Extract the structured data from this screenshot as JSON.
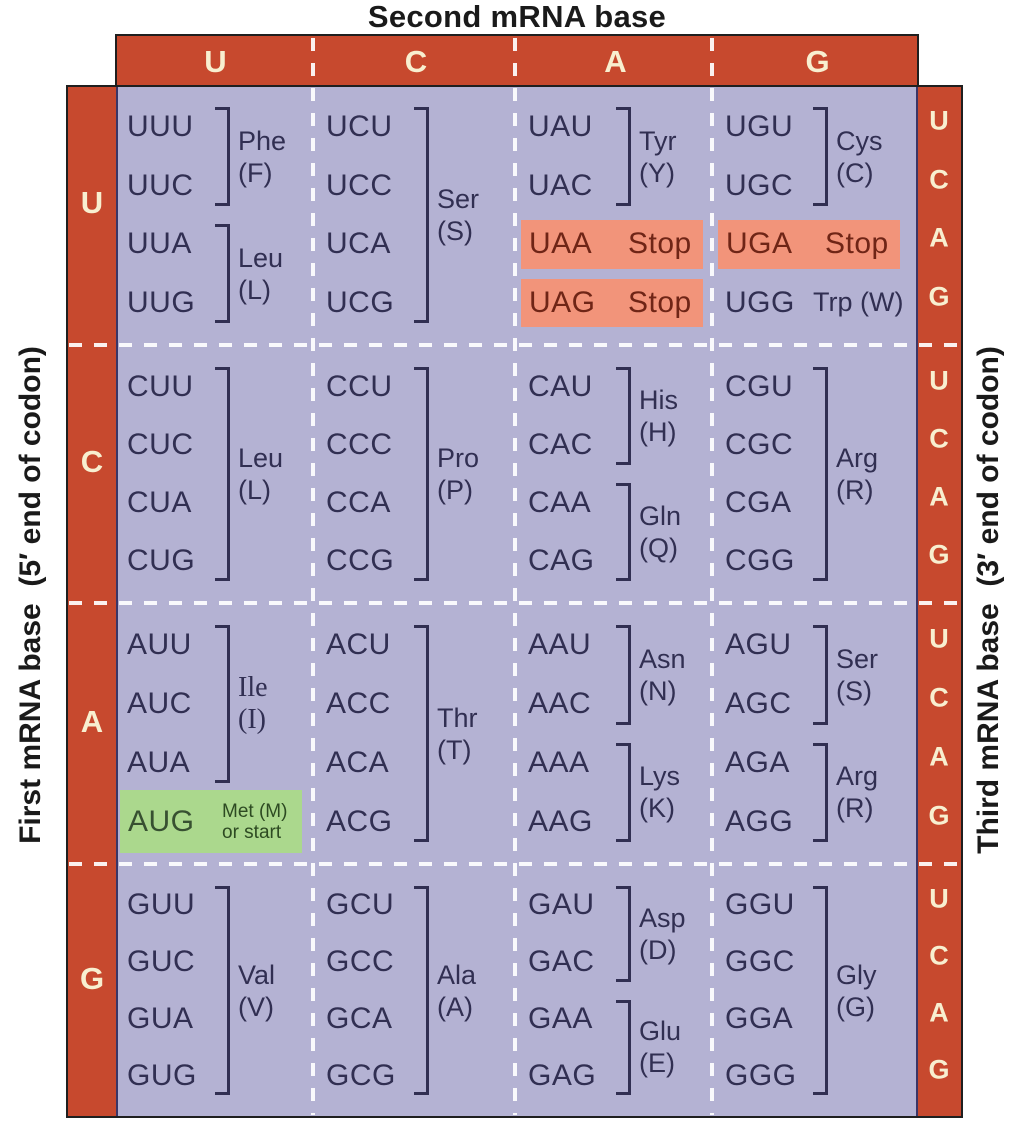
{
  "title": "Second mRNA base",
  "axis_labels": {
    "left": "First mRNA base  (5′ end of codon)",
    "right": "Third mRNA base  (3′ end of codon)"
  },
  "second_base_headers": [
    "U",
    "C",
    "A",
    "G"
  ],
  "first_base_labels": [
    "U",
    "C",
    "A",
    "G"
  ],
  "third_base_labels": [
    "U",
    "C",
    "A",
    "G"
  ],
  "colors": {
    "band_red": "#C7492E",
    "body_purple": "#B4B2D3",
    "stop_highlight": "#F2947A",
    "start_highlight": "#ABD88D",
    "codon_text": "#312F52",
    "stop_text": "#6F2516",
    "start_codon_text": "#375031",
    "start_label_text": "#2D4A22",
    "band_letter_cream": "#F8EFD0",
    "title_text": "#1A1A1A",
    "border_black": "#1F1F1F",
    "dash_white": "#FFFFFF"
  },
  "grid": {
    "rows": [
      {
        "first_base": "U",
        "cells": [
          {
            "second_base": "U",
            "groups": [
              {
                "type": "bracket",
                "codons": [
                  "UUU",
                  "UUC"
                ],
                "label": [
                  "Phe",
                  "(F)"
                ]
              },
              {
                "type": "bracket",
                "codons": [
                  "UUA",
                  "UUG"
                ],
                "label": [
                  "Leu",
                  "(L)"
                ]
              }
            ]
          },
          {
            "second_base": "C",
            "groups": [
              {
                "type": "bracket",
                "codons": [
                  "UCU",
                  "UCC",
                  "UCA",
                  "UCG"
                ],
                "label": [
                  "Ser",
                  "(S)"
                ]
              }
            ]
          },
          {
            "second_base": "A",
            "groups": [
              {
                "type": "bracket",
                "codons": [
                  "UAU",
                  "UAC"
                ],
                "label": [
                  "Tyr",
                  "(Y)"
                ]
              },
              {
                "type": "stop",
                "codon": "UAA",
                "label": "Stop"
              },
              {
                "type": "stop",
                "codon": "UAG",
                "label": "Stop"
              }
            ]
          },
          {
            "second_base": "G",
            "groups": [
              {
                "type": "bracket",
                "codons": [
                  "UGU",
                  "UGC"
                ],
                "label": [
                  "Cys",
                  "(C)"
                ]
              },
              {
                "type": "stop",
                "codon": "UGA",
                "label": "Stop"
              },
              {
                "type": "plain",
                "codon": "UGG",
                "label": "Trp (W)"
              }
            ]
          }
        ]
      },
      {
        "first_base": "C",
        "cells": [
          {
            "second_base": "U",
            "groups": [
              {
                "type": "bracket",
                "codons": [
                  "CUU",
                  "CUC",
                  "CUA",
                  "CUG"
                ],
                "label": [
                  "Leu",
                  "(L)"
                ]
              }
            ]
          },
          {
            "second_base": "C",
            "groups": [
              {
                "type": "bracket",
                "codons": [
                  "CCU",
                  "CCC",
                  "CCA",
                  "CCG"
                ],
                "label": [
                  "Pro",
                  "(P)"
                ]
              }
            ]
          },
          {
            "second_base": "A",
            "groups": [
              {
                "type": "bracket",
                "codons": [
                  "CAU",
                  "CAC"
                ],
                "label": [
                  "His",
                  "(H)"
                ]
              },
              {
                "type": "bracket",
                "codons": [
                  "CAA",
                  "CAG"
                ],
                "label": [
                  "Gln",
                  "(Q)"
                ]
              }
            ]
          },
          {
            "second_base": "G",
            "groups": [
              {
                "type": "bracket",
                "codons": [
                  "CGU",
                  "CGC",
                  "CGA",
                  "CGG"
                ],
                "label": [
                  "Arg",
                  "(R)"
                ]
              }
            ]
          }
        ]
      },
      {
        "first_base": "A",
        "cells": [
          {
            "second_base": "U",
            "groups": [
              {
                "type": "bracket",
                "codons": [
                  "AUU",
                  "AUC",
                  "AUA"
                ],
                "label": [
                  "Ile",
                  "(I)"
                ],
                "serif": true
              },
              {
                "type": "start",
                "codon": "AUG",
                "label": [
                  "Met (M)",
                  "or start"
                ]
              }
            ]
          },
          {
            "second_base": "C",
            "groups": [
              {
                "type": "bracket",
                "codons": [
                  "ACU",
                  "ACC",
                  "ACA",
                  "ACG"
                ],
                "label": [
                  "Thr",
                  "(T)"
                ]
              }
            ]
          },
          {
            "second_base": "A",
            "groups": [
              {
                "type": "bracket",
                "codons": [
                  "AAU",
                  "AAC"
                ],
                "label": [
                  "Asn",
                  "(N)"
                ]
              },
              {
                "type": "bracket",
                "codons": [
                  "AAA",
                  "AAG"
                ],
                "label": [
                  "Lys",
                  "(K)"
                ]
              }
            ]
          },
          {
            "second_base": "G",
            "groups": [
              {
                "type": "bracket",
                "codons": [
                  "AGU",
                  "AGC"
                ],
                "label": [
                  "Ser",
                  "(S)"
                ]
              },
              {
                "type": "bracket",
                "codons": [
                  "AGA",
                  "AGG"
                ],
                "label": [
                  "Arg",
                  "(R)"
                ]
              }
            ]
          }
        ]
      },
      {
        "first_base": "G",
        "cells": [
          {
            "second_base": "U",
            "groups": [
              {
                "type": "bracket",
                "codons": [
                  "GUU",
                  "GUC",
                  "GUA",
                  "GUG"
                ],
                "label": [
                  "Val",
                  "(V)"
                ]
              }
            ]
          },
          {
            "second_base": "C",
            "groups": [
              {
                "type": "bracket",
                "codons": [
                  "GCU",
                  "GCC",
                  "GCA",
                  "GCG"
                ],
                "label": [
                  "Ala",
                  "(A)"
                ]
              }
            ]
          },
          {
            "second_base": "A",
            "groups": [
              {
                "type": "bracket",
                "codons": [
                  "GAU",
                  "GAC"
                ],
                "label": [
                  "Asp",
                  "(D)"
                ]
              },
              {
                "type": "bracket",
                "codons": [
                  "GAA",
                  "GAG"
                ],
                "label": [
                  "Glu",
                  "(E)"
                ]
              }
            ]
          },
          {
            "second_base": "G",
            "groups": [
              {
                "type": "bracket",
                "codons": [
                  "GGU",
                  "GGC",
                  "GGA",
                  "GGG"
                ],
                "label": [
                  "Gly",
                  "(G)"
                ]
              }
            ]
          }
        ]
      }
    ]
  }
}
